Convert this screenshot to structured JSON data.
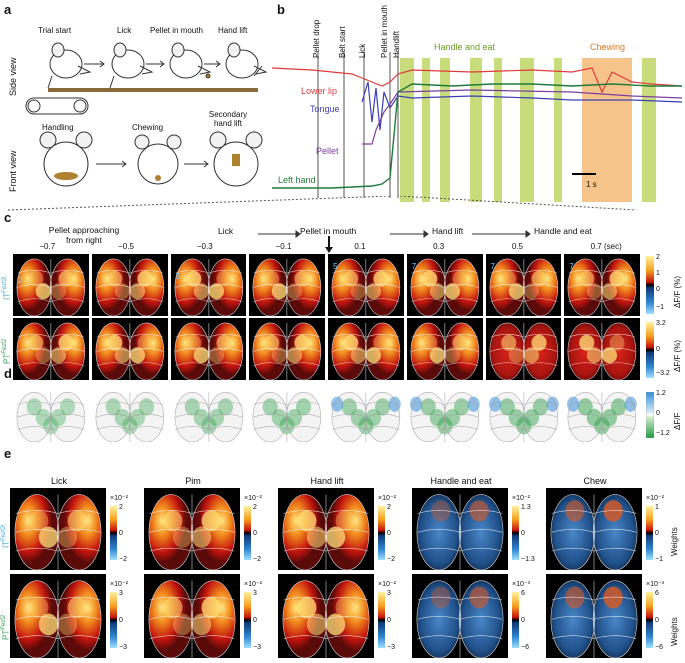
{
  "panels": {
    "a": "a",
    "b": "b",
    "c": "c",
    "d": "d",
    "e": "e"
  },
  "panel_a": {
    "side_view_label": "Side view",
    "front_view_label": "Front view",
    "side_steps": [
      "Trial start",
      "Lick",
      "Pellet in mouth",
      "Hand lift"
    ],
    "front_steps": [
      "Handling",
      "Chewing",
      "Secondary hand lift"
    ]
  },
  "panel_b": {
    "events": [
      "Pellet drop",
      "Belt start",
      "Lick",
      "Pellet in mouth",
      "Handlift"
    ],
    "handle_eat": "Handle and eat",
    "chewing": "Chewing",
    "traces": [
      "Lower lip",
      "Tongue",
      "Pellet",
      "Left hand"
    ],
    "trace_colors": {
      "lower_lip": "#e03a3a",
      "tongue": "#3b3fb3",
      "pellet": "#7b3fa0",
      "left_hand": "#1f7a3a"
    },
    "scale": "1 s"
  },
  "panel_c": {
    "header_left": "Pellet approaching from right",
    "phases": [
      "Lick",
      "Pellet in mouth",
      "Hand lift",
      "Handle and eat"
    ],
    "times": [
      "−0.7",
      "−0.5",
      "−0.3",
      "−0.1",
      "0.1",
      "0.3",
      "0.5",
      "0.7 (sec)"
    ],
    "row1_label": "IT",
    "row1_sup": "Fezf2l",
    "row2_label": "PT",
    "row2_sup": "Fezf2",
    "row1_ticks": [
      "2",
      "1",
      "0",
      "−1"
    ],
    "row2_ticks": [
      "3.2",
      "0",
      "−3.2"
    ],
    "unit": "ΔF/F (%)",
    "markers": [
      "2",
      "3",
      "5",
      "7",
      "7",
      "7"
    ]
  },
  "panel_d": {
    "ticks": [
      "1.2",
      "0",
      "−1.2"
    ],
    "unit": "ΔF/F"
  },
  "panel_e": {
    "columns": [
      "Lick",
      "Pim",
      "Hand lift",
      "Handle and eat",
      "Chew"
    ],
    "row1_label": "IT",
    "row1_sup": "Fezf2l",
    "row2_label": "PT",
    "row2_sup": "Fezf2",
    "weights": "Weights",
    "row1_scales": [
      {
        "exp": "×10⁻²",
        "ticks": [
          "2",
          "0",
          "−2"
        ]
      },
      {
        "exp": "×10⁻²",
        "ticks": [
          "2",
          "0",
          "−2"
        ]
      },
      {
        "exp": "×10⁻²",
        "ticks": [
          "2",
          "0",
          "−2"
        ]
      },
      {
        "exp": "×10⁻²",
        "ticks": [
          "1.3",
          "0",
          "−1.3"
        ]
      },
      {
        "exp": "×10⁻²",
        "ticks": [
          "1",
          "0",
          "−1"
        ]
      }
    ],
    "row2_scales": [
      {
        "exp": "×10⁻²",
        "ticks": [
          "3",
          "0",
          "−3"
        ]
      },
      {
        "exp": "×10⁻²",
        "ticks": [
          "3",
          "0",
          "−3"
        ]
      },
      {
        "exp": "×10⁻²",
        "ticks": [
          "3",
          "0",
          "−3"
        ]
      },
      {
        "exp": "×10⁻³",
        "ticks": [
          "6",
          "0",
          "−6"
        ]
      },
      {
        "exp": "×10⁻³",
        "ticks": [
          "6",
          "0",
          "−6"
        ]
      }
    ]
  },
  "colors": {
    "green_band": "#c8dc7c",
    "orange_band": "#f6c48a",
    "cyan": "#3aa8d8",
    "green_text": "#2f9c4f"
  }
}
